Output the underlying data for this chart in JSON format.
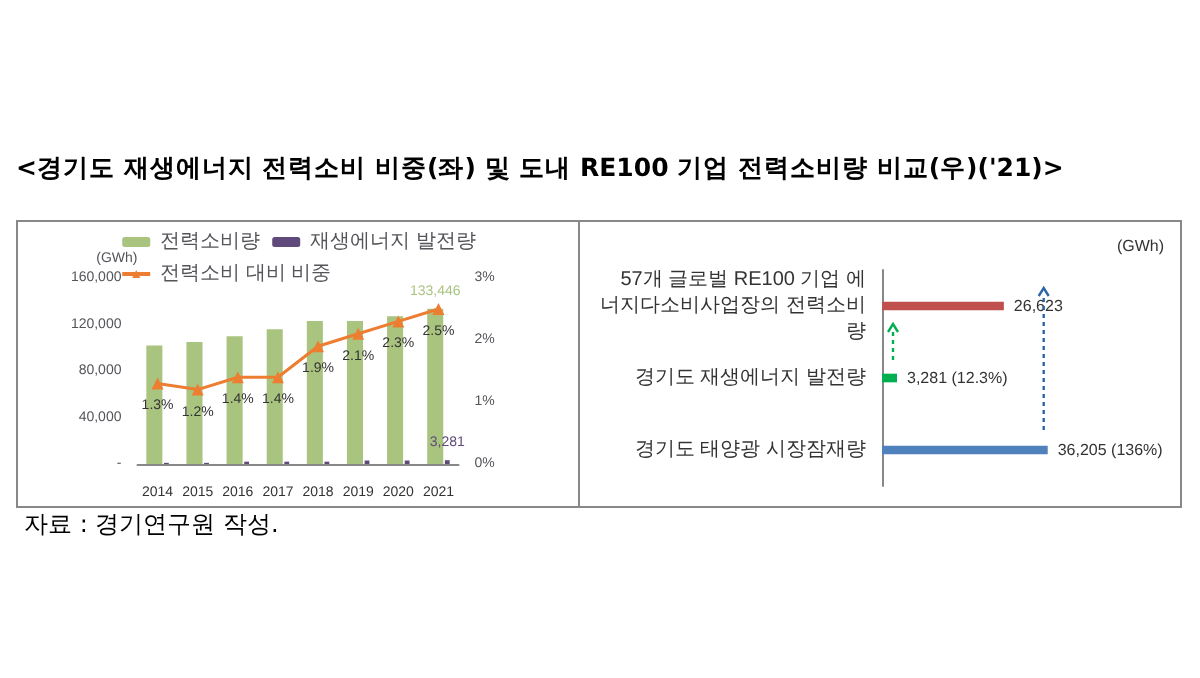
{
  "chart_data": [
    {
      "type": "bar",
      "title": "<경기도 재생에너지 전력소비 비중(좌) 및 도내 RE100 기업 전력소비량 비교(우)('21)>",
      "ylabel": "(GWh)",
      "annotations": [
        "자료 : 경기연구원 작성."
      ],
      "categories": [
        "2014",
        "2015",
        "2016",
        "2017",
        "2018",
        "2019",
        "2020",
        "2021"
      ],
      "series": [
        {
          "name": "전력소비량",
          "type": "bar",
          "color": "#a9c47f",
          "values": [
            102000,
            105000,
            110000,
            116000,
            123000,
            123000,
            127000,
            133446
          ],
          "value_labels": [
            null,
            null,
            null,
            null,
            null,
            null,
            null,
            "133,446"
          ]
        },
        {
          "name": "재생에너지 발전량",
          "type": "bar",
          "color": "#604a7b",
          "values": [
            1000,
            1000,
            2000,
            2000,
            2000,
            3000,
            3000,
            3281
          ],
          "value_labels": [
            null,
            null,
            null,
            null,
            null,
            null,
            null,
            "3,281"
          ]
        },
        {
          "name": "전력소비 대비 비중",
          "type": "line",
          "axis": "y2",
          "color": "#ed7d31",
          "values": [
            1.3,
            1.2,
            1.4,
            1.4,
            1.9,
            2.1,
            2.3,
            2.5
          ],
          "value_labels": [
            "1.3%",
            "1.2%",
            "1.4%",
            "1.4%",
            "1.9%",
            "2.1%",
            "2.3%",
            "2.5%"
          ]
        }
      ],
      "ylim": [
        0,
        160000
      ],
      "yticks": [
        {
          "value": 0,
          "label": "-"
        },
        {
          "value": 40000,
          "label": "40,000"
        },
        {
          "value": 80000,
          "label": "80,000"
        },
        {
          "value": 120000,
          "label": "120,000"
        },
        {
          "value": 160000,
          "label": "160,000"
        }
      ],
      "y2lim": [
        0,
        3
      ],
      "y2ticks": [
        {
          "value": 0,
          "label": "0%"
        },
        {
          "value": 1,
          "label": "1%"
        },
        {
          "value": 2,
          "label": "2%"
        },
        {
          "value": 3,
          "label": "3%"
        }
      ],
      "marker": "triangle",
      "legend": "top",
      "grid": false
    },
    {
      "type": "bar",
      "orientation": "horizontal",
      "annotations": [
        "(GWh)"
      ],
      "categories": [
        "57개 글로벌 RE100 기업 에너지다소비사업장의 전력소비량",
        "경기도 재생에너지 발전량",
        "경기도 태양광 시장잠재량"
      ],
      "values": [
        26623,
        3281,
        36205
      ],
      "colors": [
        "#c0504d",
        "#00b050",
        "#4f81bd"
      ],
      "value_labels": [
        "26,623",
        "3,281 (12.3%)",
        "36,205 (136%)"
      ]
    }
  ]
}
